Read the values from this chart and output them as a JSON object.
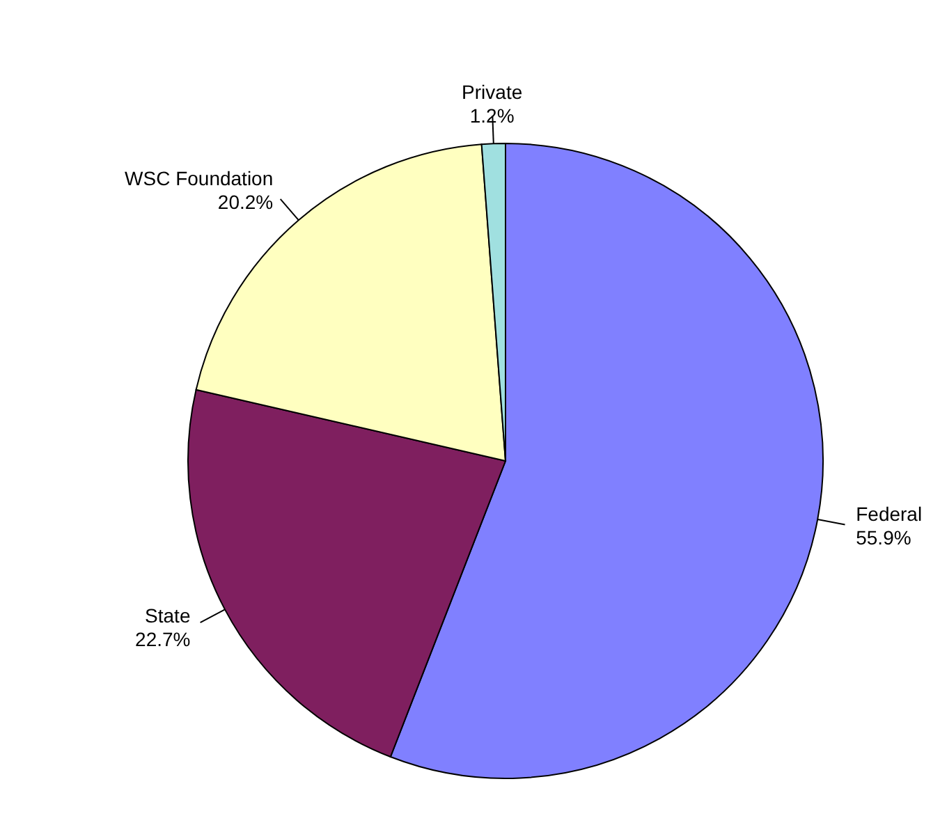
{
  "chart_data": {
    "type": "pie",
    "categories": [
      "Federal",
      "State",
      "WSC Foundation",
      "Private"
    ],
    "values": [
      55.9,
      22.7,
      20.2,
      1.2
    ],
    "value_labels": [
      "55.9%",
      "22.7%",
      "20.2%",
      "1.2%"
    ],
    "colors": [
      "#8080ff",
      "#7f1f5f",
      "#ffffc0",
      "#a0e0e0"
    ],
    "legend": false
  }
}
